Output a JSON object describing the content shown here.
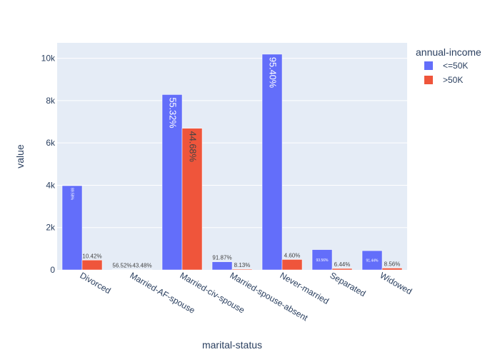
{
  "chart_data": {
    "type": "bar",
    "barmode": "group",
    "categories": [
      "Divorced",
      "Married-AF-spouse",
      "Married-civ-spouse",
      "Married-spouse-absent",
      "Never-married",
      "Separated",
      "Widowed"
    ],
    "series": [
      {
        "name": "<=50K",
        "color": "#636efa",
        "values": [
          3980,
          13,
          8285,
          384,
          10192,
          959,
          908
        ],
        "labels": [
          "89.58%",
          "56.52%",
          "55.32%",
          "91.87%",
          "95.40%",
          "93.56%",
          "91.44%"
        ]
      },
      {
        "name": ">50K",
        "color": "#ef553b",
        "values": [
          463,
          10,
          6692,
          34,
          491,
          66,
          85
        ],
        "labels": [
          "10.42%",
          "43.48%",
          "44.68%",
          "8.13%",
          "4.60%",
          "6.44%",
          "8.56%"
        ]
      }
    ],
    "xlabel": "marital-status",
    "ylabel": "value",
    "ylim": [
      0,
      10729
    ],
    "yticks": [
      0,
      2000,
      4000,
      6000,
      8000,
      10000
    ],
    "ytick_labels": [
      "0",
      "2k",
      "4k",
      "6k",
      "8k",
      "10k"
    ],
    "legend_title": "annual-income",
    "legend_position": "top-right",
    "grid": true,
    "plot_bgcolor": "#e5ecf6"
  }
}
